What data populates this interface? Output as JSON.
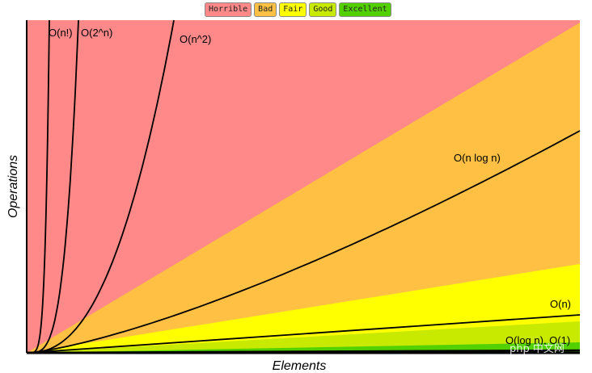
{
  "chart_data": {
    "type": "area",
    "title": "",
    "xlabel": "Elements",
    "ylabel": "Operations",
    "legend": [
      {
        "label": "Horrible",
        "color": "#ff8888"
      },
      {
        "label": "Bad",
        "color": "#ffc043"
      },
      {
        "label": "Fair",
        "color": "#ffff00"
      },
      {
        "label": "Good",
        "color": "#c8ea00"
      },
      {
        "label": "Excellent",
        "color": "#53d000"
      }
    ],
    "legend_position": "top-center",
    "regions": [
      {
        "name": "Horrible",
        "color": "#ff8888"
      },
      {
        "name": "Bad",
        "color": "#ffc043"
      },
      {
        "name": "Fair",
        "color": "#ffff00"
      },
      {
        "name": "Good",
        "color": "#c8ea00"
      },
      {
        "name": "Excellent",
        "color": "#53d000"
      }
    ],
    "curves": [
      {
        "name": "O(n!)",
        "label": "O(n!)"
      },
      {
        "name": "O(2^n)",
        "label": "O(2^n)"
      },
      {
        "name": "O(n^2)",
        "label": "O(n^2)"
      },
      {
        "name": "O(n log n)",
        "label": "O(n log n)"
      },
      {
        "name": "O(n)",
        "label": "O(n)"
      },
      {
        "name": "O(log n), O(1)",
        "label": "O(log n), O(1)"
      }
    ],
    "grid": false
  },
  "watermark": "php 中文网"
}
